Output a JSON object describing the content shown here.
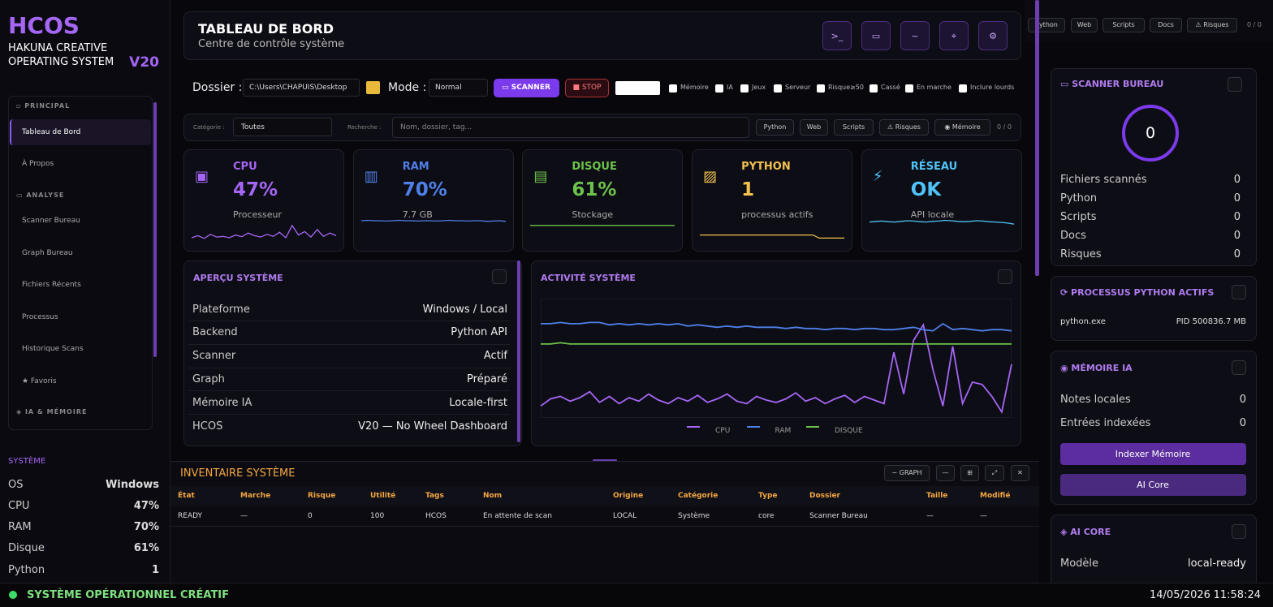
{
  "sidebar": {
    "logo": "HCOS",
    "subtitle": [
      "HAKUNA CREATIVE",
      "OPERATING SYSTEM"
    ],
    "version": "V20",
    "nav": [
      {
        "section": "▫ PRINCIPAL",
        "items": [
          "Tableau de Bord",
          "À Propos"
        ]
      },
      {
        "section": "▭ ANALYSE",
        "items": [
          "Scanner Bureau",
          "Graph Bureau",
          "Fichiers Récents",
          "Processus",
          "Historique Scans",
          "★ Favoris"
        ]
      },
      {
        "section": "◈ IA & MÉMOIRE",
        "items": []
      }
    ],
    "system": {
      "title": "SYSTÈME",
      "rows": [
        [
          "OS",
          "Windows"
        ],
        [
          "CPU",
          "47%"
        ],
        [
          "RAM",
          "70%"
        ],
        [
          "Disque",
          "61%"
        ],
        [
          "Python",
          "1"
        ]
      ]
    }
  },
  "header": {
    "title": "TABLEAU DE BORD",
    "subtitle": "Centre de contrôle système",
    "icons": [
      ">_",
      "▭",
      "~",
      "⌖",
      "⚙"
    ]
  },
  "top_filters": {
    "buttons": [
      "Python",
      "Web",
      "Scripts",
      "Docs",
      "⚠ Risques"
    ],
    "count": "0 / 0"
  },
  "toolbar": {
    "folder_label": "Dossier :",
    "folder": "C:\\Users\\CHAPUIS\\Desktop",
    "mode_label": "Mode :",
    "mode": "Normal",
    "scan": "▭ SCANNER",
    "stop": "■ STOP",
    "checks": [
      "Mémoire",
      "IA",
      "Jeux",
      "Serveur",
      "Risque≥50",
      "Cassé",
      "En marche",
      "Inclure lourds"
    ]
  },
  "filters": {
    "category_label": "Catégorie :",
    "category": "Toutes",
    "search_label": "Recherche :",
    "search_placeholder": "Nom, dossier, tag...",
    "buttons": [
      "Python",
      "Web",
      "Scripts",
      "⚠ Risques",
      "◉ Mémoire"
    ],
    "count": "0 / 0"
  },
  "cards": [
    {
      "icon": "▣",
      "label": "CPU",
      "value": "47%",
      "sub": "Processeur",
      "color": "#a566f5",
      "spark": [
        12,
        18,
        10,
        22,
        14,
        16,
        12,
        20,
        15,
        26,
        18,
        14,
        22,
        16,
        28,
        12,
        48,
        20,
        30,
        14,
        36,
        16,
        26,
        18
      ]
    },
    {
      "icon": "▥",
      "label": "RAM",
      "value": "70%",
      "sub": "7.7 GB",
      "color": "#4f7fe8",
      "spark": [
        62,
        63,
        62,
        62,
        61,
        62,
        63,
        62,
        62,
        61,
        62,
        62,
        61,
        62,
        63,
        62,
        62,
        61,
        62,
        62,
        60,
        61,
        62,
        60
      ]
    },
    {
      "icon": "▤",
      "label": "DISQUE",
      "value": "61%",
      "sub": "Stockage",
      "color": "#6cc24a",
      "spark": [
        48,
        48,
        48,
        48,
        48,
        48,
        48,
        48,
        48,
        48,
        48,
        48,
        48,
        48,
        48,
        48,
        48,
        48,
        48,
        48,
        48,
        48,
        48,
        48
      ]
    },
    {
      "icon": "▨",
      "label": "PYTHON",
      "value": "1",
      "sub": "processus actifs",
      "color": "#f2c14e",
      "spark": [
        20,
        20,
        20,
        20,
        20,
        20,
        20,
        20,
        20,
        20,
        20,
        20,
        20,
        20,
        20,
        20,
        20,
        20,
        20,
        11,
        11,
        11,
        11,
        11
      ]
    },
    {
      "icon": "⚡",
      "label": "RÉSEAU",
      "value": "OK",
      "sub": "API locale",
      "color": "#4fc3f7",
      "spark": [
        58,
        60,
        61,
        59,
        58,
        60,
        62,
        61,
        59,
        58,
        60,
        61,
        63,
        62,
        60,
        59,
        60,
        62,
        61,
        59,
        58,
        57,
        55,
        52
      ]
    }
  ],
  "overview": {
    "title": "APERÇU SYSTÈME",
    "rows": [
      [
        "Plateforme",
        "Windows / Local"
      ],
      [
        "Backend",
        "Python API"
      ],
      [
        "Scanner",
        "Actif"
      ],
      [
        "Graph",
        "Préparé"
      ],
      [
        "Mémoire IA",
        "Locale-first"
      ],
      [
        "HCOS",
        "V20 — No Wheel Dashboard"
      ]
    ]
  },
  "chart_data": {
    "type": "line",
    "title": "ACTIVITÉ SYSTÈME",
    "ylim": [
      0,
      100
    ],
    "series": [
      {
        "name": "CPU",
        "color": "#a566f5",
        "values": [
          10,
          16,
          18,
          14,
          17,
          22,
          13,
          18,
          12,
          17,
          14,
          20,
          15,
          12,
          17,
          14,
          19,
          13,
          16,
          20,
          14,
          12,
          18,
          15,
          13,
          16,
          21,
          14,
          17,
          12,
          16,
          19,
          13,
          18,
          15,
          12,
          55,
          20,
          65,
          78,
          40,
          10,
          60,
          12,
          30,
          28,
          18,
          5,
          45
        ]
      },
      {
        "name": "RAM",
        "color": "#4f7fe8",
        "values": [
          79,
          79,
          80,
          79,
          79,
          80,
          80,
          78,
          79,
          78,
          79,
          78,
          79,
          78,
          79,
          77,
          78,
          77,
          76,
          77,
          76,
          77,
          76,
          76,
          76,
          75,
          76,
          75,
          75,
          74,
          75,
          75,
          74,
          75,
          75,
          74,
          74,
          75,
          76,
          74,
          73,
          79,
          74,
          75,
          74,
          73,
          74,
          74,
          73
        ]
      },
      {
        "name": "DISQUE",
        "color": "#6cc24a",
        "values": [
          62,
          62,
          63,
          62,
          62,
          62,
          62,
          62,
          62,
          62,
          62,
          62,
          62,
          62,
          62,
          62,
          62,
          62,
          62,
          62,
          62,
          62,
          62,
          62,
          62,
          62,
          62,
          62,
          62,
          62,
          62,
          62,
          62,
          62,
          62,
          62,
          62,
          62,
          62,
          62,
          62,
          62,
          62,
          62,
          62,
          62,
          62,
          62,
          62
        ]
      }
    ]
  },
  "inventory": {
    "title": "INVENTAIRE SYSTÈME",
    "buttons": [
      "~ GRAPH",
      "—",
      "⊞",
      "⤢",
      "✕"
    ],
    "columns": [
      "État",
      "Marche",
      "Risque",
      "Utilité",
      "Tags",
      "Nom",
      "Origine",
      "Catégorie",
      "Type",
      "Dossier",
      "Taille",
      "Modifié"
    ],
    "rows": [
      [
        "READY",
        "—",
        "0",
        "100",
        "HCOS",
        "En attente de scan",
        "LOCAL",
        "Système",
        "core",
        "Scanner Bureau",
        "—",
        "—"
      ]
    ]
  },
  "scanner": {
    "title": "▭ SCANNER BUREAU",
    "count": "0",
    "rows": [
      [
        "Fichiers scannés",
        "0"
      ],
      [
        "Python",
        "0"
      ],
      [
        "Scripts",
        "0"
      ],
      [
        "Docs",
        "0"
      ],
      [
        "Risques",
        "0"
      ]
    ]
  },
  "processes": {
    "title": "⟳ PROCESSUS PYTHON ACTIFS",
    "rows": [
      [
        "python.exe",
        "PID 500836.7 MB"
      ]
    ]
  },
  "memory": {
    "title": "◉ MÉMOIRE IA",
    "rows": [
      [
        "Notes locales",
        "0"
      ],
      [
        "Entrées indexées",
        "0"
      ]
    ],
    "buttons": [
      "Indexer Mémoire",
      "AI Core"
    ]
  },
  "ai_core": {
    "title": "◈ AI CORE",
    "rows": [
      [
        "Modèle",
        "local-ready"
      ]
    ]
  },
  "footer": {
    "status": "SYSTÈME OPÉRATIONNEL CRÉATIF",
    "date": "14/05/2026",
    "time": "11:58:24"
  }
}
